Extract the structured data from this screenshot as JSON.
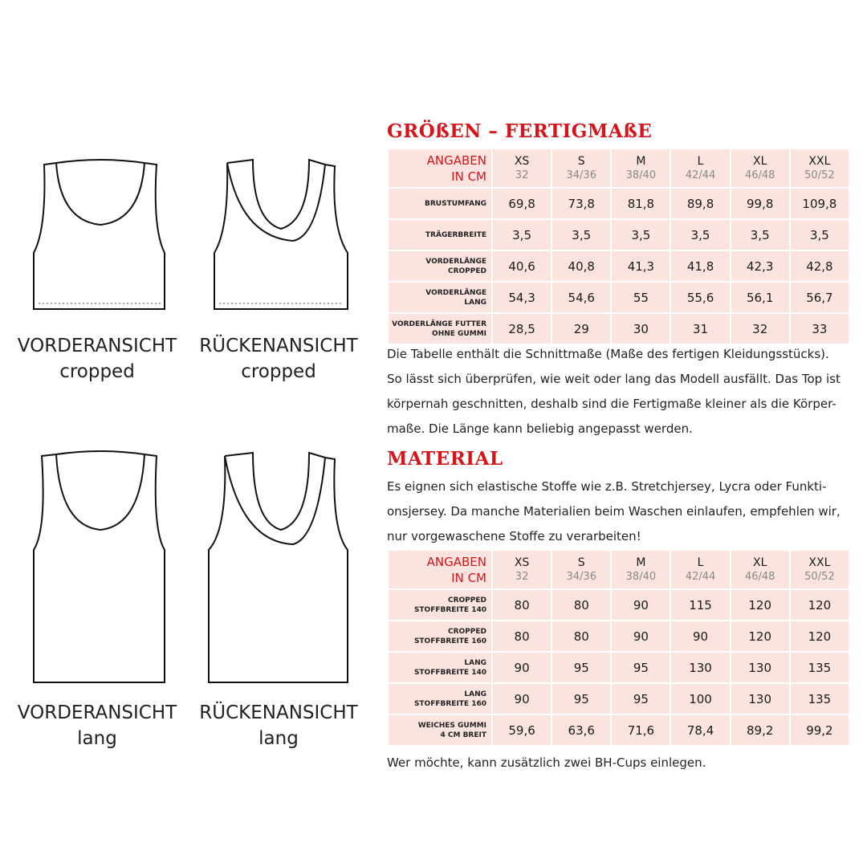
{
  "figures": [
    {
      "label1": "VORDERANSICHT",
      "label2": "cropped"
    },
    {
      "label1": "RÜCKENANSICHT",
      "label2": "cropped"
    },
    {
      "label1": "VORDERANSICHT",
      "label2": "lang"
    },
    {
      "label1": "RÜCKENANSICHT",
      "label2": "lang"
    }
  ],
  "sizes_title": "GRÖßEN – FERTIGMAßE",
  "table1": {
    "corner": [
      "ANGABEN",
      "IN CM"
    ],
    "sizes": [
      {
        "s": "XS",
        "n": "32"
      },
      {
        "s": "S",
        "n": "34/36"
      },
      {
        "s": "M",
        "n": "38/40"
      },
      {
        "s": "L",
        "n": "42/44"
      },
      {
        "s": "XL",
        "n": "46/48"
      },
      {
        "s": "XXL",
        "n": "50/52"
      }
    ],
    "rows": [
      {
        "label": [
          "BRUSTUMFANG"
        ],
        "values": [
          "69,8",
          "73,8",
          "81,8",
          "89,8",
          "99,8",
          "109,8"
        ]
      },
      {
        "label": [
          "TRÄGERBREITE"
        ],
        "values": [
          "3,5",
          "3,5",
          "3,5",
          "3,5",
          "3,5",
          "3,5"
        ]
      },
      {
        "label": [
          "VORDERLÄNGE",
          "CROPPED"
        ],
        "values": [
          "40,6",
          "40,8",
          "41,3",
          "41,8",
          "42,3",
          "42,8"
        ]
      },
      {
        "label": [
          "VORDERLÄNGE",
          "LANG"
        ],
        "values": [
          "54,3",
          "54,6",
          "55",
          "55,6",
          "56,1",
          "56,7"
        ]
      },
      {
        "label": [
          "VORDERLÄNGE FUTTER",
          "OHNE GUMMI"
        ],
        "values": [
          "28,5",
          "29",
          "30",
          "31",
          "32",
          "33"
        ]
      }
    ]
  },
  "para1": [
    "Die Tabelle enthält die Schnittmaße (Maße des fertigen Kleidungsstücks).",
    "So lässt sich überprüfen, wie weit oder lang das Modell ausfällt. Das Top ist",
    "körpernah geschnitten, deshalb sind die Fertigmaße kleiner als die Körper-",
    "maße. Die Länge kann beliebig angepasst werden."
  ],
  "material_title": "MATERIAL",
  "para2": [
    "Es eignen sich elastische Stoffe wie z.B. Stretchjersey, Lycra oder Funkti-",
    "onsjersey. Da manche Materialien beim Waschen einlaufen, empfehlen wir,",
    "nur vorgewaschene Stoffe zu verarbeiten!"
  ],
  "table2": {
    "corner": [
      "ANGABEN",
      "IN CM"
    ],
    "sizes": [
      {
        "s": "XS",
        "n": "32"
      },
      {
        "s": "S",
        "n": "34/36"
      },
      {
        "s": "M",
        "n": "38/40"
      },
      {
        "s": "L",
        "n": "42/44"
      },
      {
        "s": "XL",
        "n": "46/48"
      },
      {
        "s": "XXL",
        "n": "50/52"
      }
    ],
    "rows": [
      {
        "label": [
          "CROPPED",
          "STOFFBREITE 140"
        ],
        "values": [
          "80",
          "80",
          "90",
          "115",
          "120",
          "120"
        ]
      },
      {
        "label": [
          "CROPPED",
          "STOFFBREITE 160"
        ],
        "values": [
          "80",
          "80",
          "90",
          "90",
          "120",
          "120"
        ]
      },
      {
        "label": [
          "LANG",
          "STOFFBREITE 140"
        ],
        "values": [
          "90",
          "95",
          "95",
          "130",
          "130",
          "135"
        ]
      },
      {
        "label": [
          "LANG",
          "STOFFBREITE 160"
        ],
        "values": [
          "90",
          "95",
          "95",
          "100",
          "130",
          "135"
        ]
      },
      {
        "label": [
          "WEICHES GUMMI",
          "4 CM BREIT"
        ],
        "values": [
          "59,6",
          "63,6",
          "71,6",
          "78,4",
          "89,2",
          "99,2"
        ]
      }
    ]
  },
  "footer_note": "Wer möchte, kann zusätzlich zwei BH-Cups einlegen.",
  "colors": {
    "accent": "#d7141a",
    "cell": "#fbe4e0"
  }
}
